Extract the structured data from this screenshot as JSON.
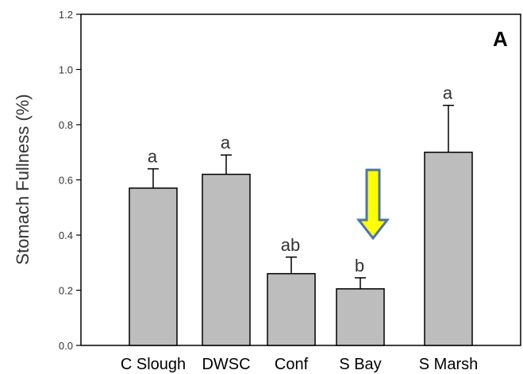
{
  "chart_data": {
    "type": "bar",
    "title": "",
    "panel_label": "A",
    "xlabel": "",
    "ylabel": "Stomach Fullness (%)",
    "ylim": [
      0,
      1.2
    ],
    "yticks": [
      "0.0",
      "0.2",
      "0.4",
      "0.6",
      "0.8",
      "1.0",
      "1.2"
    ],
    "categories": [
      "C Slough",
      "DWSC",
      "Conf",
      "S Bay",
      "S Marsh"
    ],
    "values": [
      0.57,
      0.62,
      0.26,
      0.205,
      0.7
    ],
    "errors": [
      0.07,
      0.07,
      0.06,
      0.04,
      0.17
    ],
    "significance": [
      "a",
      "a",
      "ab",
      "b",
      "a"
    ],
    "highlight": {
      "category": "S Bay",
      "marker": "arrow-down",
      "fill": "#ffff00",
      "stroke": "#4a72b0"
    },
    "grid": false,
    "bar_color": "#bdbdbd"
  }
}
